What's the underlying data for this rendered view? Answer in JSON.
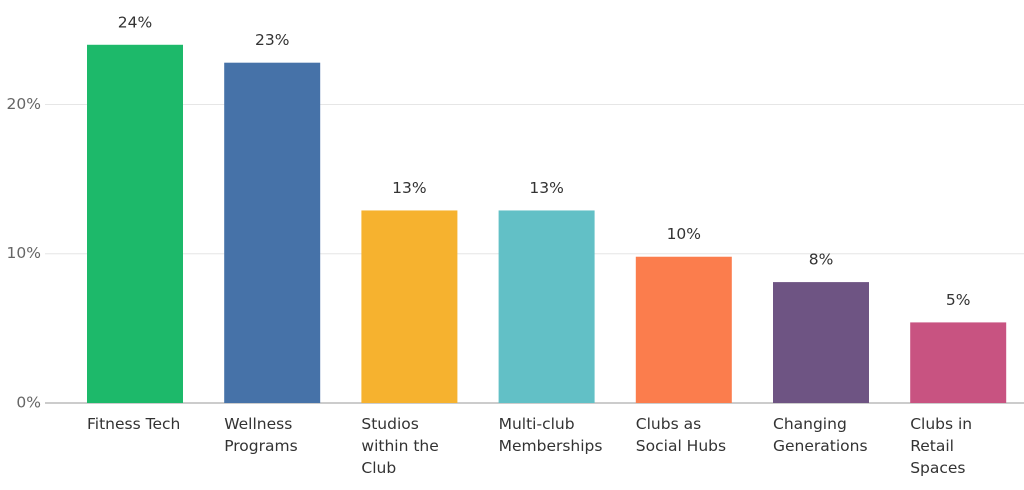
{
  "chart_data": {
    "type": "bar",
    "categories": [
      "Fitness Tech",
      "Wellness Programs",
      "Studios within the Club",
      "Multi-club Memberships",
      "Clubs as Social Hubs",
      "Changing Generations",
      "Clubs in Retail Spaces"
    ],
    "values": [
      24,
      22.8,
      12.9,
      12.9,
      9.8,
      8.1,
      5.4
    ],
    "value_labels": [
      "24%",
      "23%",
      "13%",
      "13%",
      "10%",
      "8%",
      "5%"
    ],
    "colors": [
      "#1db96a",
      "#4672a8",
      "#f6b22f",
      "#62c0c6",
      "#fb7d4d",
      "#6e5483",
      "#c85381"
    ],
    "ylim": [
      0,
      27
    ],
    "yticks": [
      {
        "value": 0,
        "label": "0%"
      },
      {
        "value": 10,
        "label": "10%"
      },
      {
        "value": 20,
        "label": "20%"
      }
    ],
    "grid": true
  }
}
